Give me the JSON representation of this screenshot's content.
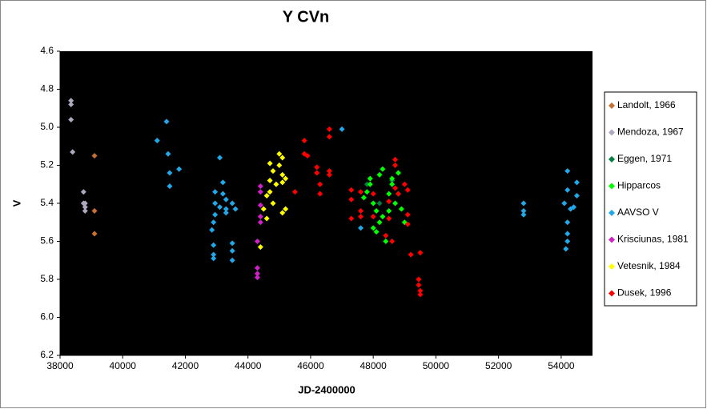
{
  "chart_data": {
    "type": "scatter",
    "title": "Y CVn",
    "xlabel": "JD-2400000",
    "ylabel": "V",
    "xlim": [
      38000,
      55000
    ],
    "xticks": [
      38000,
      40000,
      42000,
      44000,
      46000,
      48000,
      50000,
      52000,
      54000
    ],
    "ylim": [
      4.6,
      6.2
    ],
    "inverted_y": true,
    "yticks": [
      4.6,
      4.8,
      {
        "value": 5,
        "label": "5.0"
      },
      5.2,
      5.4,
      5.6,
      5.8,
      {
        "value": 6,
        "label": "6.0"
      },
      6.2
    ],
    "background": "#000000",
    "legend": "right",
    "series": [
      {
        "name": "Landolt, 1966",
        "color": "#c87137",
        "x": [
          39100,
          39100,
          39100
        ],
        "values": [
          5.15,
          5.44,
          5.56
        ]
      },
      {
        "name": "Mendoza, 1967",
        "color": "#b0a8c0",
        "x": [
          38350,
          38350,
          38350,
          38400,
          38750,
          38800,
          38800,
          38800,
          38750
        ],
        "values": [
          4.86,
          4.88,
          4.96,
          5.13,
          5.34,
          5.4,
          5.42,
          5.44,
          5.4
        ]
      },
      {
        "name": "Eggen, 1971",
        "color": "#008040",
        "x": [
          47800,
          48200,
          48600
        ],
        "values": [
          5.3,
          5.4,
          5.28
        ]
      },
      {
        "name": "Hipparcos",
        "color": "#00ff00",
        "x": [
          47800,
          47900,
          47900,
          48000,
          48000,
          48100,
          48100,
          48200,
          48300,
          48300,
          48400,
          48500,
          48500,
          48600,
          48600,
          48700,
          48800,
          48800,
          48900,
          49000,
          48200,
          47700
        ],
        "values": [
          5.34,
          5.27,
          5.3,
          5.4,
          5.53,
          5.55,
          5.44,
          5.25,
          5.22,
          5.47,
          5.6,
          5.35,
          5.44,
          5.27,
          5.3,
          5.4,
          5.35,
          5.24,
          5.43,
          5.5,
          5.5,
          5.37
        ]
      },
      {
        "name": "AAVSO V",
        "color": "#20a8e8",
        "x": [
          41100,
          41400,
          41450,
          41500,
          41500,
          41800,
          42850,
          42900,
          42900,
          42900,
          42900,
          42950,
          42950,
          42950,
          43100,
          43100,
          43200,
          43200,
          43300,
          43300,
          43300,
          43500,
          43500,
          43500,
          43500,
          43600,
          47000,
          47600,
          52800,
          52800,
          52800,
          54100,
          54200,
          54200,
          54200,
          54200,
          54200,
          54150,
          54300,
          54500,
          54500,
          54400
        ],
        "values": [
          5.07,
          4.97,
          5.14,
          5.24,
          5.31,
          5.22,
          5.54,
          5.5,
          5.62,
          5.67,
          5.69,
          5.34,
          5.4,
          5.46,
          5.16,
          5.42,
          5.29,
          5.35,
          5.38,
          5.45,
          5.43,
          5.4,
          5.61,
          5.65,
          5.7,
          5.43,
          5.01,
          5.53,
          5.4,
          5.44,
          5.46,
          5.4,
          5.23,
          5.33,
          5.5,
          5.56,
          5.6,
          5.64,
          5.43,
          5.29,
          5.36,
          5.42
        ]
      },
      {
        "name": "Krisciunas, 1981",
        "color": "#d020c8",
        "x": [
          44300,
          44300,
          44300,
          44300,
          44400,
          44400,
          44400,
          44400,
          44400
        ],
        "values": [
          5.6,
          5.74,
          5.77,
          5.79,
          5.31,
          5.34,
          5.41,
          5.47,
          5.5
        ]
      },
      {
        "name": "Vetesnik, 1984",
        "color": "#ffff00",
        "x": [
          44400,
          44500,
          44600,
          44700,
          44700,
          44700,
          44800,
          44800,
          44900,
          45000,
          45000,
          45100,
          45100,
          45100,
          45100,
          45200,
          45200,
          44600
        ],
        "values": [
          5.63,
          5.43,
          5.48,
          5.19,
          5.28,
          5.34,
          5.4,
          5.23,
          5.3,
          5.14,
          5.2,
          5.16,
          5.25,
          5.29,
          5.45,
          5.43,
          5.27,
          5.36
        ]
      },
      {
        "name": "Dusek, 1996",
        "color": "#ff0000",
        "x": [
          45500,
          45800,
          45800,
          45900,
          46200,
          46200,
          46300,
          46300,
          46600,
          46600,
          46600,
          46600,
          47300,
          47300,
          47300,
          47600,
          47600,
          47600,
          48000,
          48000,
          48500,
          48500,
          48400,
          48600,
          48700,
          48700,
          48700,
          48800,
          49000,
          49100,
          49100,
          49100,
          49200,
          49500,
          49450,
          49450,
          49500,
          49500
        ],
        "values": [
          5.34,
          5.07,
          5.14,
          5.15,
          5.21,
          5.24,
          5.3,
          5.35,
          5.01,
          5.05,
          5.23,
          5.25,
          5.33,
          5.38,
          5.48,
          5.34,
          5.44,
          5.47,
          5.35,
          5.47,
          5.39,
          5.48,
          5.57,
          5.6,
          5.17,
          5.2,
          5.32,
          5.35,
          5.3,
          5.33,
          5.46,
          5.51,
          5.67,
          5.66,
          5.8,
          5.83,
          5.86,
          5.88
        ]
      }
    ]
  }
}
